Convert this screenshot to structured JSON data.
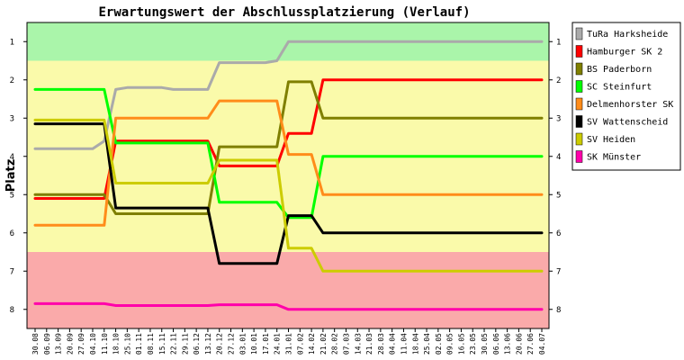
{
  "chart_data": {
    "type": "line",
    "title": "Erwartungswert der Abschlussplatzierung (Verlauf)",
    "ylabel": "Platz",
    "xlabel": "",
    "ylim": [
      0.5,
      8.5
    ],
    "y_inverted": true,
    "yticks": [
      1,
      2,
      3,
      4,
      5,
      6,
      7,
      8
    ],
    "legend_position": "right",
    "bands": [
      {
        "from": 0.5,
        "to": 1.5,
        "color": "#aaf5aa"
      },
      {
        "from": 1.5,
        "to": 6.5,
        "color": "#fafaaa"
      },
      {
        "from": 6.5,
        "to": 8.5,
        "color": "#faaaaa"
      }
    ],
    "x": [
      "30.08",
      "06.09",
      "13.09",
      "20.09",
      "27.09",
      "04.10",
      "11.10",
      "18.10",
      "25.10",
      "01.11",
      "08.11",
      "15.11",
      "22.11",
      "29.11",
      "06.12",
      "13.12",
      "20.12",
      "27.12",
      "03.01",
      "10.01",
      "17.01",
      "24.01",
      "31.01",
      "07.02",
      "14.02",
      "21.02",
      "28.02",
      "07.03",
      "14.03",
      "21.03",
      "28.03",
      "04.04",
      "11.04",
      "18.04",
      "25.04",
      "02.05",
      "09.05",
      "16.05",
      "23.05",
      "30.05",
      "06.06",
      "13.06",
      "20.06",
      "27.06",
      "04.07"
    ],
    "series": [
      {
        "name": "TuRa Harksheide",
        "color": "#aaaaaa",
        "values": [
          3.8,
          3.8,
          3.8,
          3.8,
          3.8,
          3.8,
          3.6,
          2.25,
          2.2,
          2.2,
          2.2,
          2.2,
          2.25,
          2.25,
          2.25,
          2.25,
          1.55,
          1.55,
          1.55,
          1.55,
          1.55,
          1.5,
          1.0,
          1,
          1,
          1,
          1,
          1,
          1,
          1,
          1,
          1,
          1,
          1,
          1,
          1,
          1,
          1,
          1,
          1,
          1,
          1,
          1,
          1,
          1
        ]
      },
      {
        "name": "Hamburger SK 2",
        "color": "#ff0000",
        "values": [
          5.1,
          5.1,
          5.1,
          5.1,
          5.1,
          5.1,
          5.1,
          3.6,
          3.6,
          3.6,
          3.6,
          3.6,
          3.6,
          3.6,
          3.6,
          3.6,
          4.25,
          4.25,
          4.25,
          4.25,
          4.25,
          4.25,
          3.4,
          3.4,
          3.4,
          2.0,
          2,
          2,
          2,
          2,
          2,
          2,
          2,
          2,
          2,
          2,
          2,
          2,
          2,
          2,
          2,
          2,
          2,
          2,
          2
        ]
      },
      {
        "name": "BS Paderborn",
        "color": "#7f7f00",
        "values": [
          5.0,
          5.0,
          5.0,
          5.0,
          5.0,
          5.0,
          5.0,
          5.5,
          5.5,
          5.5,
          5.5,
          5.5,
          5.5,
          5.5,
          5.5,
          5.5,
          3.75,
          3.75,
          3.75,
          3.75,
          3.75,
          3.75,
          2.05,
          2.05,
          2.05,
          3.0,
          3,
          3,
          3,
          3,
          3,
          3,
          3,
          3,
          3,
          3,
          3,
          3,
          3,
          3,
          3,
          3,
          3,
          3,
          3
        ]
      },
      {
        "name": "SC Steinfurt",
        "color": "#00ff00",
        "values": [
          2.25,
          2.25,
          2.25,
          2.25,
          2.25,
          2.25,
          2.25,
          3.65,
          3.65,
          3.65,
          3.65,
          3.65,
          3.65,
          3.65,
          3.65,
          3.65,
          5.2,
          5.2,
          5.2,
          5.2,
          5.2,
          5.2,
          5.6,
          5.6,
          5.6,
          4.0,
          4,
          4,
          4,
          4,
          4,
          4,
          4,
          4,
          4,
          4,
          4,
          4,
          4,
          4,
          4,
          4,
          4,
          4,
          4
        ]
      },
      {
        "name": "Delmenhorster SK",
        "color": "#ff8c1a",
        "values": [
          5.8,
          5.8,
          5.8,
          5.8,
          5.8,
          5.8,
          5.8,
          3.0,
          3.0,
          3.0,
          3.0,
          3.0,
          3.0,
          3.0,
          3.0,
          3.0,
          2.55,
          2.55,
          2.55,
          2.55,
          2.55,
          2.55,
          3.95,
          3.95,
          3.95,
          5.0,
          5,
          5,
          5,
          5,
          5,
          5,
          5,
          5,
          5,
          5,
          5,
          5,
          5,
          5,
          5,
          5,
          5,
          5,
          5
        ]
      },
      {
        "name": "SV Wattenscheid",
        "color": "#000000",
        "values": [
          3.15,
          3.15,
          3.15,
          3.15,
          3.15,
          3.15,
          3.15,
          5.35,
          5.35,
          5.35,
          5.35,
          5.35,
          5.35,
          5.35,
          5.35,
          5.35,
          6.8,
          6.8,
          6.8,
          6.8,
          6.8,
          6.8,
          5.55,
          5.55,
          5.55,
          6.0,
          6,
          6,
          6,
          6,
          6,
          6,
          6,
          6,
          6,
          6,
          6,
          6,
          6,
          6,
          6,
          6,
          6,
          6,
          6
        ]
      },
      {
        "name": "SV Heiden",
        "color": "#cccc00",
        "values": [
          3.05,
          3.05,
          3.05,
          3.05,
          3.05,
          3.05,
          3.05,
          4.7,
          4.7,
          4.7,
          4.7,
          4.7,
          4.7,
          4.7,
          4.7,
          4.7,
          4.1,
          4.1,
          4.1,
          4.1,
          4.1,
          4.1,
          6.4,
          6.4,
          6.4,
          7.0,
          7,
          7,
          7,
          7,
          7,
          7,
          7,
          7,
          7,
          7,
          7,
          7,
          7,
          7,
          7,
          7,
          7,
          7,
          7
        ]
      },
      {
        "name": "SK Münster",
        "color": "#ff00aa",
        "values": [
          7.85,
          7.85,
          7.85,
          7.85,
          7.85,
          7.85,
          7.85,
          7.9,
          7.9,
          7.9,
          7.9,
          7.9,
          7.9,
          7.9,
          7.9,
          7.9,
          7.88,
          7.88,
          7.88,
          7.88,
          7.88,
          7.88,
          8.0,
          8,
          8,
          8,
          8,
          8,
          8,
          8,
          8,
          8,
          8,
          8,
          8,
          8,
          8,
          8,
          8,
          8,
          8,
          8,
          8,
          8,
          8
        ]
      }
    ]
  }
}
